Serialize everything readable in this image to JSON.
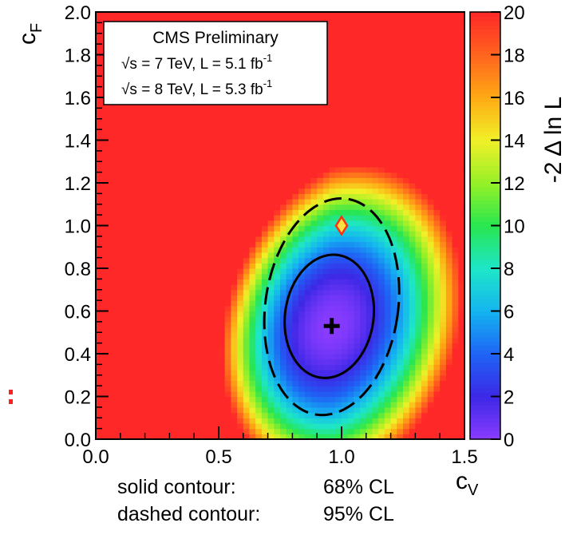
{
  "chart_data": {
    "type": "heatmap",
    "xlabel": "c",
    "xlabel_sub": "V",
    "ylabel": "c",
    "ylabel_sub": "F",
    "xlim": [
      0.0,
      1.5
    ],
    "ylim": [
      0.0,
      2.0
    ],
    "x_ticks": [
      "0.0",
      "0.5",
      "1.0",
      "1.5"
    ],
    "y_ticks": [
      "0.0",
      "0.2",
      "0.4",
      "0.6",
      "0.8",
      "1.0",
      "1.2",
      "1.4",
      "1.6",
      "1.8",
      "2.0"
    ],
    "colorbar": {
      "title": "-2 Δ ln L",
      "range": [
        0,
        20
      ],
      "ticks": [
        "0",
        "2",
        "4",
        "6",
        "8",
        "10",
        "12",
        "14",
        "16",
        "18",
        "20"
      ],
      "colors": [
        "#8a3cff",
        "#3c28e6",
        "#1e64f5",
        "#14b4f0",
        "#1ee6c8",
        "#28e650",
        "#96f028",
        "#f0f028",
        "#ffaa14",
        "#ff641e",
        "#ff2828"
      ]
    },
    "legend": {
      "header": "CMS Preliminary",
      "line1": {
        "prefix": "√s = 7 TeV, L = 5.1 fb",
        "exp": "-1"
      },
      "line2": {
        "prefix": "√s = 8 TeV, L = 5.3 fb",
        "exp": "-1"
      },
      "placement": "top-left"
    },
    "best_fit": {
      "cV": 0.96,
      "cF": 0.53
    },
    "sm_point": {
      "cV": 1.0,
      "cF": 1.0
    },
    "contours": [
      {
        "name": "solid",
        "cl": "68% CL",
        "center": [
          0.95,
          0.575
        ],
        "half_widths": [
          0.18,
          0.29
        ]
      },
      {
        "name": "dashed",
        "cl": "95% CL",
        "center": [
          0.96,
          0.62
        ],
        "half_widths": [
          0.27,
          0.51
        ]
      }
    ]
  },
  "captions": {
    "solid_label": "solid contour:",
    "solid_value": "68% CL",
    "dashed_label": "dashed contour:",
    "dashed_value": "95% CL"
  }
}
